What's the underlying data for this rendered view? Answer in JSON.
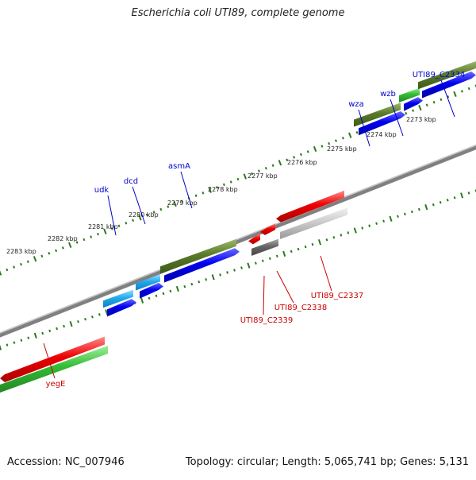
{
  "title": "Escherichia coli UTI89, complete genome",
  "footer": {
    "accession": "Accession: NC_007946",
    "topology": "Topology: circular; Length: 5,065,741 bp; Genes: 5,131"
  },
  "colors": {
    "forward_label": "#0000cc",
    "reverse_label": "#cc0000",
    "backbone": "#808080",
    "tick": "#2a7a1a",
    "gene_blue": "#0000ee",
    "gene_cyan": "#22aaee",
    "gene_olive": "#5a7a2a",
    "gene_green": "#33bb33",
    "gene_red": "#ee0000",
    "gene_gray": "#666666",
    "gene_lightgray": "#bbbbbb"
  },
  "scale": {
    "ticks": [
      "2283 kbp",
      "2282 kbp",
      "2281 kbp",
      "2280 kbp",
      "2279 kbp",
      "2278 kbp",
      "2277 kbp",
      "2276 kbp",
      "2275 kbp",
      "2274 kbp",
      "2273 kbp"
    ]
  },
  "genes_forward": [
    {
      "label": "udk"
    },
    {
      "label": "dcd"
    },
    {
      "label": "asmA"
    },
    {
      "label": "wza"
    },
    {
      "label": "wzb"
    },
    {
      "label": "UTI89_C2334"
    }
  ],
  "genes_reverse": [
    {
      "label": "UTI89_C2337"
    },
    {
      "label": "UTI89_C2338"
    },
    {
      "label": "UTI89_C2339"
    },
    {
      "label": "yegE"
    }
  ]
}
